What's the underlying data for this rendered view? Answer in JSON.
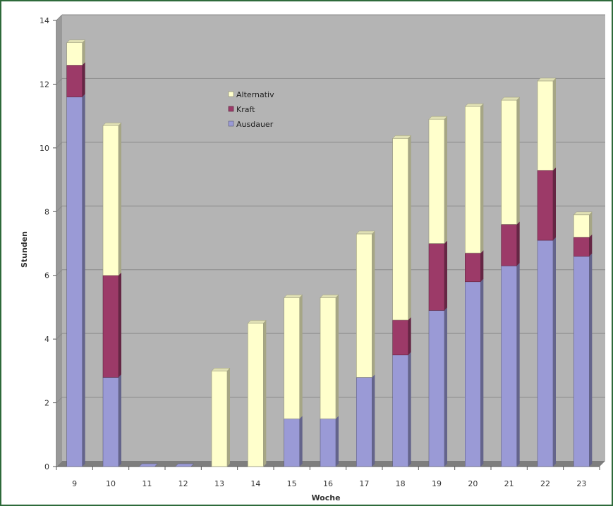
{
  "chart_data": {
    "type": "bar",
    "stacked": true,
    "title": "",
    "xlabel": "Woche",
    "ylabel": "Stunden",
    "ylim": [
      0,
      14
    ],
    "yticks": [
      0,
      2,
      4,
      6,
      8,
      10,
      12,
      14
    ],
    "categories": [
      "9",
      "10",
      "11",
      "12",
      "13",
      "14",
      "15",
      "16",
      "17",
      "18",
      "19",
      "20",
      "21",
      "22",
      "23"
    ],
    "series": [
      {
        "name": "Ausdauer",
        "color": "#9a9ad6",
        "values": [
          11.6,
          2.8,
          0,
          0,
          0,
          0,
          1.5,
          1.5,
          2.8,
          3.5,
          4.9,
          5.8,
          6.3,
          7.1,
          6.6
        ]
      },
      {
        "name": "Kraft",
        "color": "#9c3a68",
        "values": [
          1.0,
          3.2,
          0,
          0,
          0,
          0,
          0,
          0,
          0,
          1.1,
          2.1,
          0.9,
          1.3,
          2.2,
          0.6
        ]
      },
      {
        "name": "Alternativ",
        "color": "#ffffcc",
        "values": [
          0.7,
          4.7,
          0,
          0,
          3.0,
          4.5,
          3.8,
          3.8,
          4.5,
          5.7,
          3.9,
          4.6,
          3.9,
          2.8,
          0.7
        ]
      }
    ],
    "legend": [
      "Alternativ",
      "Kraft",
      "Ausdauer"
    ],
    "legend_position": "top-center",
    "grid": true,
    "plot_background": "#b4b4b4"
  }
}
